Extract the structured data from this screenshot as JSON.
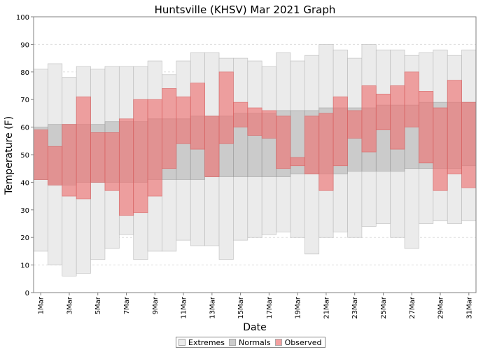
{
  "chart_data": {
    "type": "bar",
    "title": "Huntsville (KHSV) Mar 2021 Graph",
    "xlabel": "Date",
    "ylabel": "Temperature (F)",
    "ylim": [
      0,
      100
    ],
    "yticks": [
      0,
      10,
      20,
      30,
      40,
      50,
      60,
      70,
      80,
      90,
      100
    ],
    "grid": true,
    "legend_position": "bottom",
    "categories": [
      "1Mar",
      "2Mar",
      "3Mar",
      "4Mar",
      "5Mar",
      "6Mar",
      "7Mar",
      "8Mar",
      "9Mar",
      "10Mar",
      "11Mar",
      "12Mar",
      "13Mar",
      "14Mar",
      "15Mar",
      "16Mar",
      "17Mar",
      "18Mar",
      "19Mar",
      "20Mar",
      "21Mar",
      "22Mar",
      "23Mar",
      "24Mar",
      "25Mar",
      "26Mar",
      "27Mar",
      "28Mar",
      "29Mar",
      "30Mar",
      "31Mar"
    ],
    "xtick_labels": [
      "1Mar",
      "3Mar",
      "5Mar",
      "7Mar",
      "9Mar",
      "11Mar",
      "13Mar",
      "15Mar",
      "17Mar",
      "19Mar",
      "21Mar",
      "23Mar",
      "25Mar",
      "27Mar",
      "29Mar",
      "31Mar"
    ],
    "series": [
      {
        "name": "Extremes",
        "color": "#ebebeb",
        "low": [
          15,
          10,
          6,
          7,
          12,
          16,
          21,
          12,
          15,
          15,
          19,
          17,
          17,
          12,
          19,
          20,
          21,
          22,
          20,
          14,
          20,
          22,
          20,
          24,
          25,
          20,
          16,
          25,
          26,
          25,
          26
        ],
        "high": [
          81,
          83,
          78,
          82,
          81,
          82,
          82,
          82,
          84,
          79,
          84,
          87,
          87,
          85,
          85,
          84,
          82,
          87,
          84,
          86,
          90,
          88,
          85,
          90,
          88,
          88,
          86,
          87,
          88,
          86,
          88
        ]
      },
      {
        "name": "Normals",
        "color": "#cccccc",
        "low": [
          41,
          39,
          39,
          40,
          40,
          40,
          40,
          40,
          41,
          41,
          41,
          41,
          42,
          42,
          42,
          42,
          42,
          42,
          43,
          43,
          43,
          43,
          44,
          44,
          44,
          44,
          45,
          45,
          45,
          45,
          46
        ],
        "high": [
          60,
          61,
          61,
          61,
          61,
          62,
          62,
          62,
          63,
          63,
          63,
          64,
          64,
          64,
          65,
          65,
          65,
          66,
          66,
          66,
          67,
          67,
          67,
          67,
          68,
          68,
          68,
          69,
          69,
          69,
          69
        ]
      },
      {
        "name": "Observed",
        "color": "#f08080",
        "low": [
          41,
          39,
          35,
          34,
          40,
          37,
          28,
          29,
          35,
          45,
          54,
          52,
          42,
          54,
          60,
          57,
          56,
          45,
          46,
          43,
          37,
          46,
          56,
          51,
          59,
          52,
          60,
          47,
          37,
          43,
          38
        ],
        "high": [
          59,
          53,
          61,
          71,
          58,
          58,
          63,
          70,
          70,
          74,
          71,
          76,
          64,
          80,
          69,
          67,
          66,
          64,
          49,
          64,
          65,
          71,
          66,
          75,
          72,
          75,
          80,
          73,
          67,
          77,
          69
        ]
      }
    ]
  }
}
